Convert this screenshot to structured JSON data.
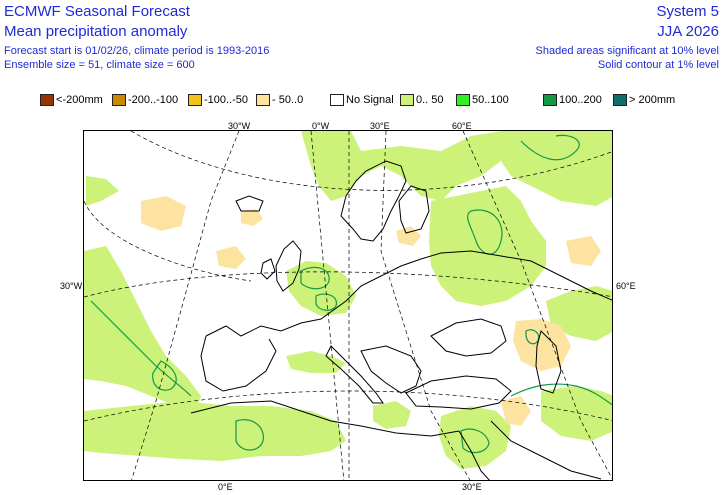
{
  "header": {
    "title": "ECMWF Seasonal Forecast",
    "subtitle": "Mean precipitation anomaly",
    "forecast_line": "Forecast start is 01/02/26, climate period is 1993-2016",
    "ensemble_line": "Ensemble size = 51, climate size = 600",
    "system": "System 5",
    "season": "JJA 2026",
    "shaded_note": "Shaded areas significant at 10% level",
    "contour_note": "Solid contour at 1% level"
  },
  "legend": [
    {
      "label": "<-200mm",
      "color": "#993300"
    },
    {
      "label": "-200..-100",
      "color": "#cc8800"
    },
    {
      "label": "-100..-50",
      "color": "#f2c31c"
    },
    {
      "label": "- 50..0",
      "color": "#fde3a0"
    },
    {
      "label": "No Signal",
      "color": "#ffffff"
    },
    {
      "label": "0.. 50",
      "color": "#ccf27a"
    },
    {
      "label": "50..100",
      "color": "#33ee22"
    },
    {
      "label": "100..200",
      "color": "#139944"
    },
    {
      "label": "> 200mm",
      "color": "#0d6e6e"
    }
  ],
  "map": {
    "grid_labels": {
      "top_30w": "30°W",
      "top_0w": "0°W",
      "top_30e": "30°E",
      "top_60e": "60°E",
      "left_30w": "30°W",
      "right_60e": "60°E",
      "bottom_0e": "0°E",
      "bottom_30e": "30°E"
    },
    "colors": {
      "positive_light": "#ccf27a",
      "negative_light": "#fde3a0",
      "contour": "#139944",
      "coast": "#000000",
      "grid": "#000000"
    }
  }
}
